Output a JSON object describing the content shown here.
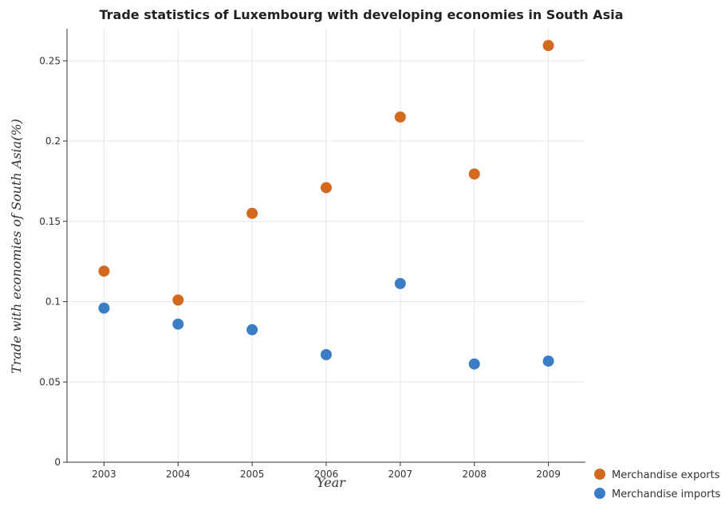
{
  "chart_data": {
    "type": "scatter",
    "title": "Trade statistics of Luxembourg with developing economies in South Asia",
    "xlabel": "Year",
    "ylabel": "Trade with economies of South Asia(%)",
    "categories": [
      "2003",
      "2004",
      "2005",
      "2006",
      "2007",
      "2008",
      "2009"
    ],
    "ylim": [
      0,
      0.27
    ],
    "yticks": [
      0,
      0.05,
      0.1,
      0.15,
      0.2,
      0.25
    ],
    "ytick_labels": [
      "0",
      "0.05",
      "0.1",
      "0.15",
      "0.2",
      "0.25"
    ],
    "grid": true,
    "legend_position": "bottom-right",
    "series": [
      {
        "name": "Merchandise exports",
        "color": "#d2691e",
        "values": [
          0.119,
          0.101,
          0.155,
          0.171,
          0.215,
          0.1795,
          0.2595
        ]
      },
      {
        "name": "Merchandise imports",
        "color": "#3b7dc4",
        "values": [
          0.096,
          0.086,
          0.0825,
          0.067,
          0.1113,
          0.0612,
          0.063
        ]
      }
    ]
  }
}
